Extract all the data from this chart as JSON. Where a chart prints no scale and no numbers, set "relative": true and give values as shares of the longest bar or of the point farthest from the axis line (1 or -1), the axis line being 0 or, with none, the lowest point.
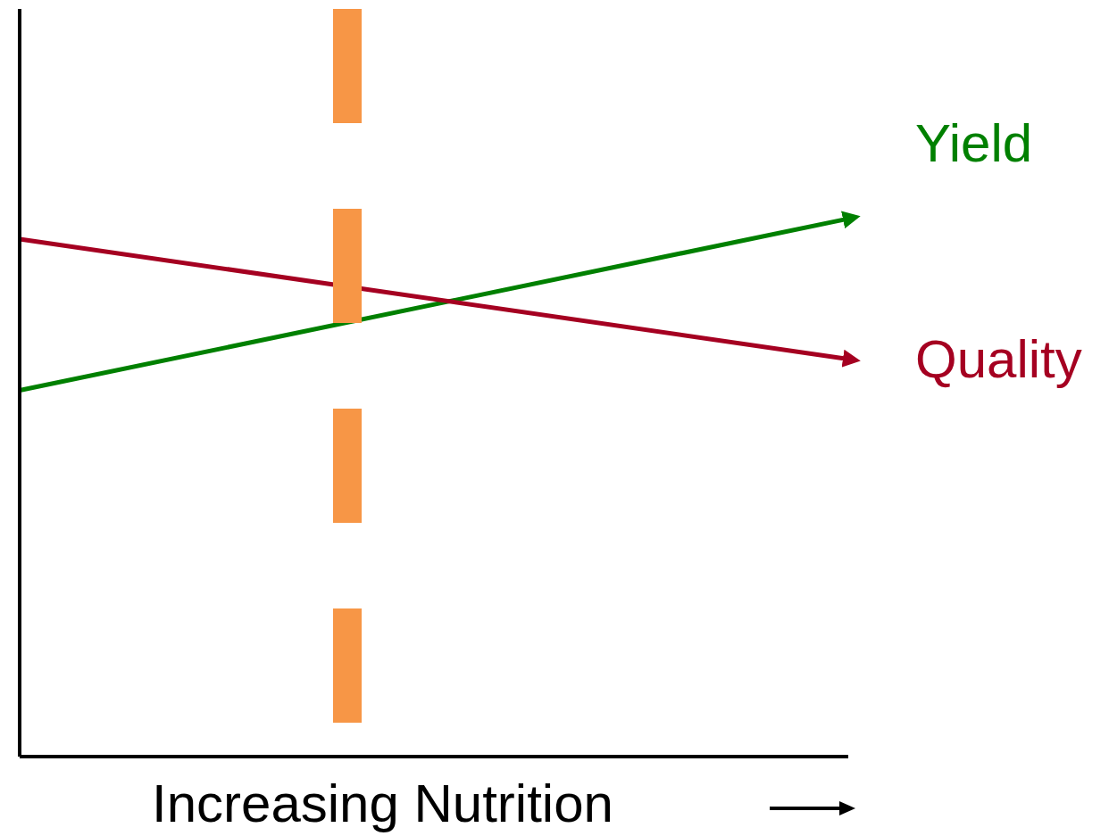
{
  "chart_data": {
    "type": "line",
    "relative": true,
    "xlabel": "Increasing Nutrition",
    "categories": [
      null,
      null,
      null,
      null,
      null,
      null
    ],
    "series": [
      {
        "name": "Yield",
        "color": "#008000",
        "values": [
          0.681,
          null,
          null,
          null,
          null,
          1
        ]
      },
      {
        "name": "Quality",
        "color": "#a50021",
        "values": [
          0.962,
          null,
          null,
          null,
          null,
          0.739
        ]
      }
    ],
    "marker": "none",
    "line_style": "solid"
  }
}
